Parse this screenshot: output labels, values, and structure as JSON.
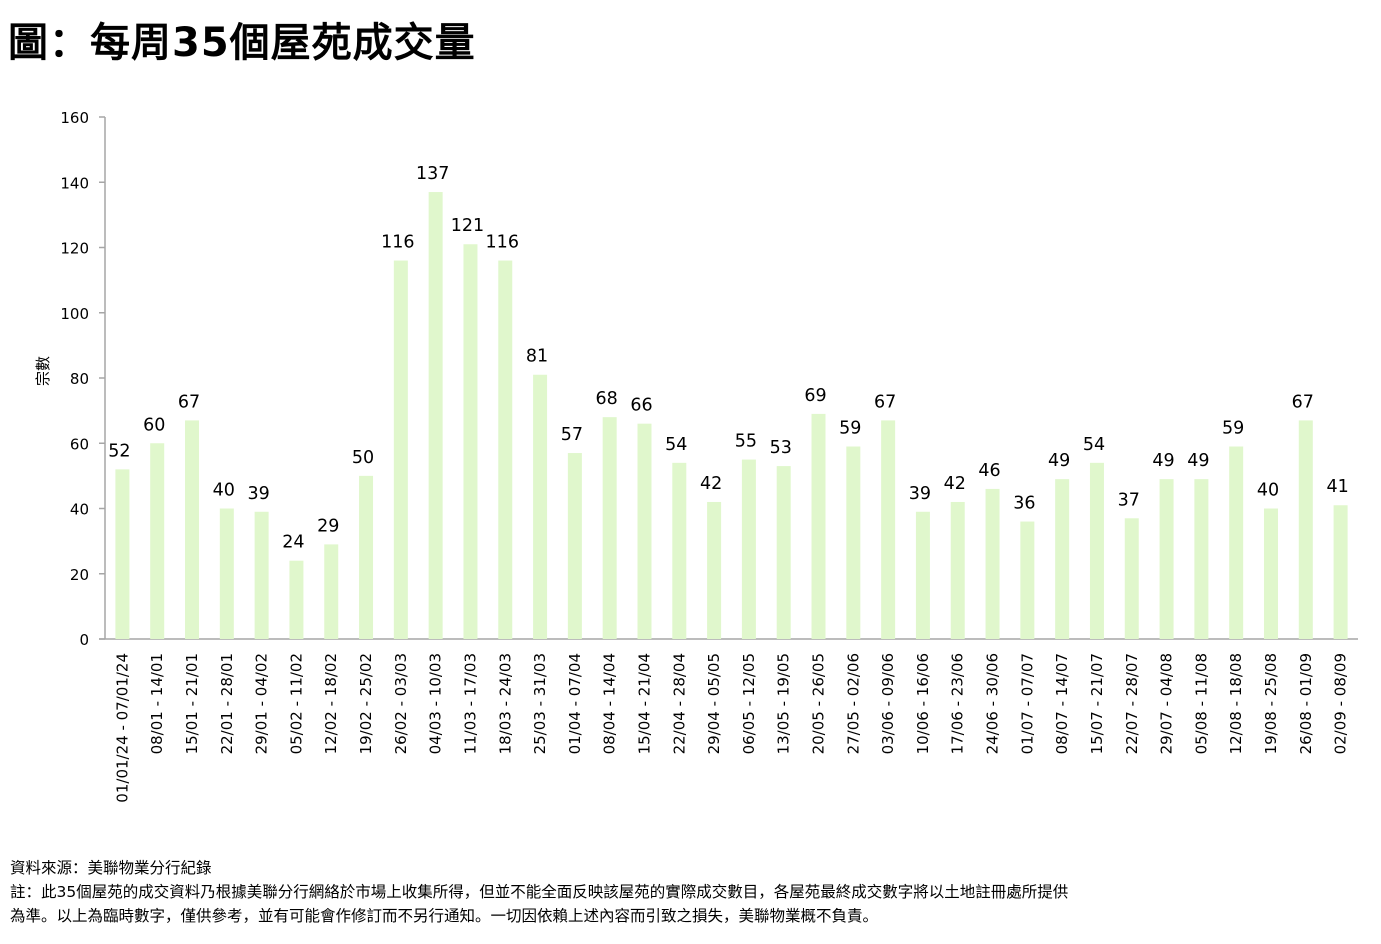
{
  "title": "圖：每周35個屋苑成交量",
  "chart_data": {
    "type": "bar",
    "title": "圖：每周35個屋苑成交量",
    "xlabel": "",
    "ylabel": "宗數",
    "ylim": [
      0,
      160
    ],
    "yticks": [
      0,
      20,
      40,
      60,
      80,
      100,
      120,
      140,
      160
    ],
    "grid": false,
    "legend": "none",
    "bar_color": "#e0f7cc",
    "axis_color": "#a6a6a6",
    "categories": [
      "01/01/24 - 07/01/24",
      "08/01 - 14/01",
      "15/01 - 21/01",
      "22/01 - 28/01",
      "29/01 - 04/02",
      "05/02 - 11/02",
      "12/02 - 18/02",
      "19/02 - 25/02",
      "26/02 - 03/03",
      "04/03 - 10/03",
      "11/03 - 17/03",
      "18/03 - 24/03",
      "25/03 - 31/03",
      "01/04 - 07/04",
      "08/04 - 14/04",
      "15/04 - 21/04",
      "22/04 - 28/04",
      "29/04 - 05/05",
      "06/05 - 12/05",
      "13/05 - 19/05",
      "20/05 - 26/05",
      "27/05 - 02/06",
      "03/06 - 09/06",
      "10/06 - 16/06",
      "17/06 - 23/06",
      "24/06 - 30/06",
      "01/07 - 07/07",
      "08/07 - 14/07",
      "15/07 - 21/07",
      "22/07 - 28/07",
      "29/07 - 04/08",
      "05/08 - 11/08",
      "12/08 - 18/08",
      "19/08 - 25/08",
      "26/08 - 01/09",
      "02/09 - 08/09"
    ],
    "values": [
      52,
      60,
      67,
      40,
      39,
      24,
      29,
      50,
      116,
      137,
      121,
      116,
      81,
      57,
      68,
      66,
      54,
      42,
      55,
      53,
      69,
      59,
      67,
      39,
      42,
      46,
      36,
      49,
      54,
      37,
      49,
      49,
      59,
      40,
      67,
      41
    ]
  },
  "footnotes": {
    "source": "資料來源：美聯物業分行紀錄",
    "note_line1": "註：此35個屋苑的成交資料乃根據美聯分行網絡於市場上收集所得，但並不能全面反映該屋苑的實際成交數目，各屋苑最終成交數字將以土地註冊處所提供",
    "note_line2": "為準。以上為臨時數字，僅供參考，並有可能會作修訂而不另行通知。一切因依賴上述內容而引致之損失，美聯物業概不負責。"
  }
}
